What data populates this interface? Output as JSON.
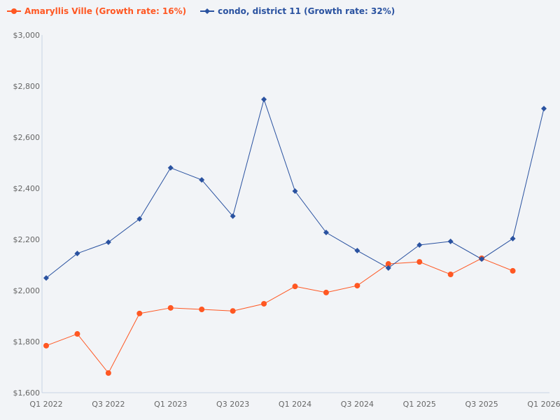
{
  "chart_data": {
    "type": "line",
    "title": "",
    "xlabel": "",
    "ylabel": "",
    "categories": [
      "Q1 2022",
      "Q2 2022",
      "Q3 2022",
      "Q4 2022",
      "Q1 2023",
      "Q2 2023",
      "Q3 2023",
      "Q4 2023",
      "Q1 2024",
      "Q2 2024",
      "Q3 2024",
      "Q4 2024",
      "Q1 2025",
      "Q2 2025",
      "Q3 2025",
      "Q4 2025",
      "Q1 2026"
    ],
    "x_tick_labels": [
      "Q1 2022",
      "Q3 2022",
      "Q1 2023",
      "Q3 2023",
      "Q1 2024",
      "Q3 2024",
      "Q1 2025",
      "Q3 2025",
      "Q1 2026"
    ],
    "ylim": [
      1600,
      3000
    ],
    "y_ticks": [
      1600,
      1800,
      2000,
      2200,
      2400,
      2600,
      2800,
      3000
    ],
    "y_tick_labels": [
      "$1,600",
      "$1,800",
      "$2,000",
      "$2,200",
      "$2,400",
      "$2,600",
      "$2,800",
      "$3,000"
    ],
    "grid": false,
    "legend_position": "top-left",
    "series": [
      {
        "name": "Amaryllis Ville (Growth rate: 16%)",
        "color": "#ff5722",
        "marker": "circle",
        "values": [
          1784,
          1830,
          1677,
          1910,
          1932,
          1926,
          1920,
          1948,
          2016,
          1992,
          2019,
          2104,
          2112,
          2063,
          2126,
          2077,
          null
        ]
      },
      {
        "name": "condo, district 11 (Growth rate: 32%)",
        "color": "#2a52a0",
        "marker": "diamond",
        "values": [
          2049,
          2145,
          2189,
          2280,
          2480,
          2433,
          2291,
          2748,
          2389,
          2227,
          2156,
          2088,
          2178,
          2192,
          2123,
          2203,
          2712
        ]
      }
    ]
  }
}
